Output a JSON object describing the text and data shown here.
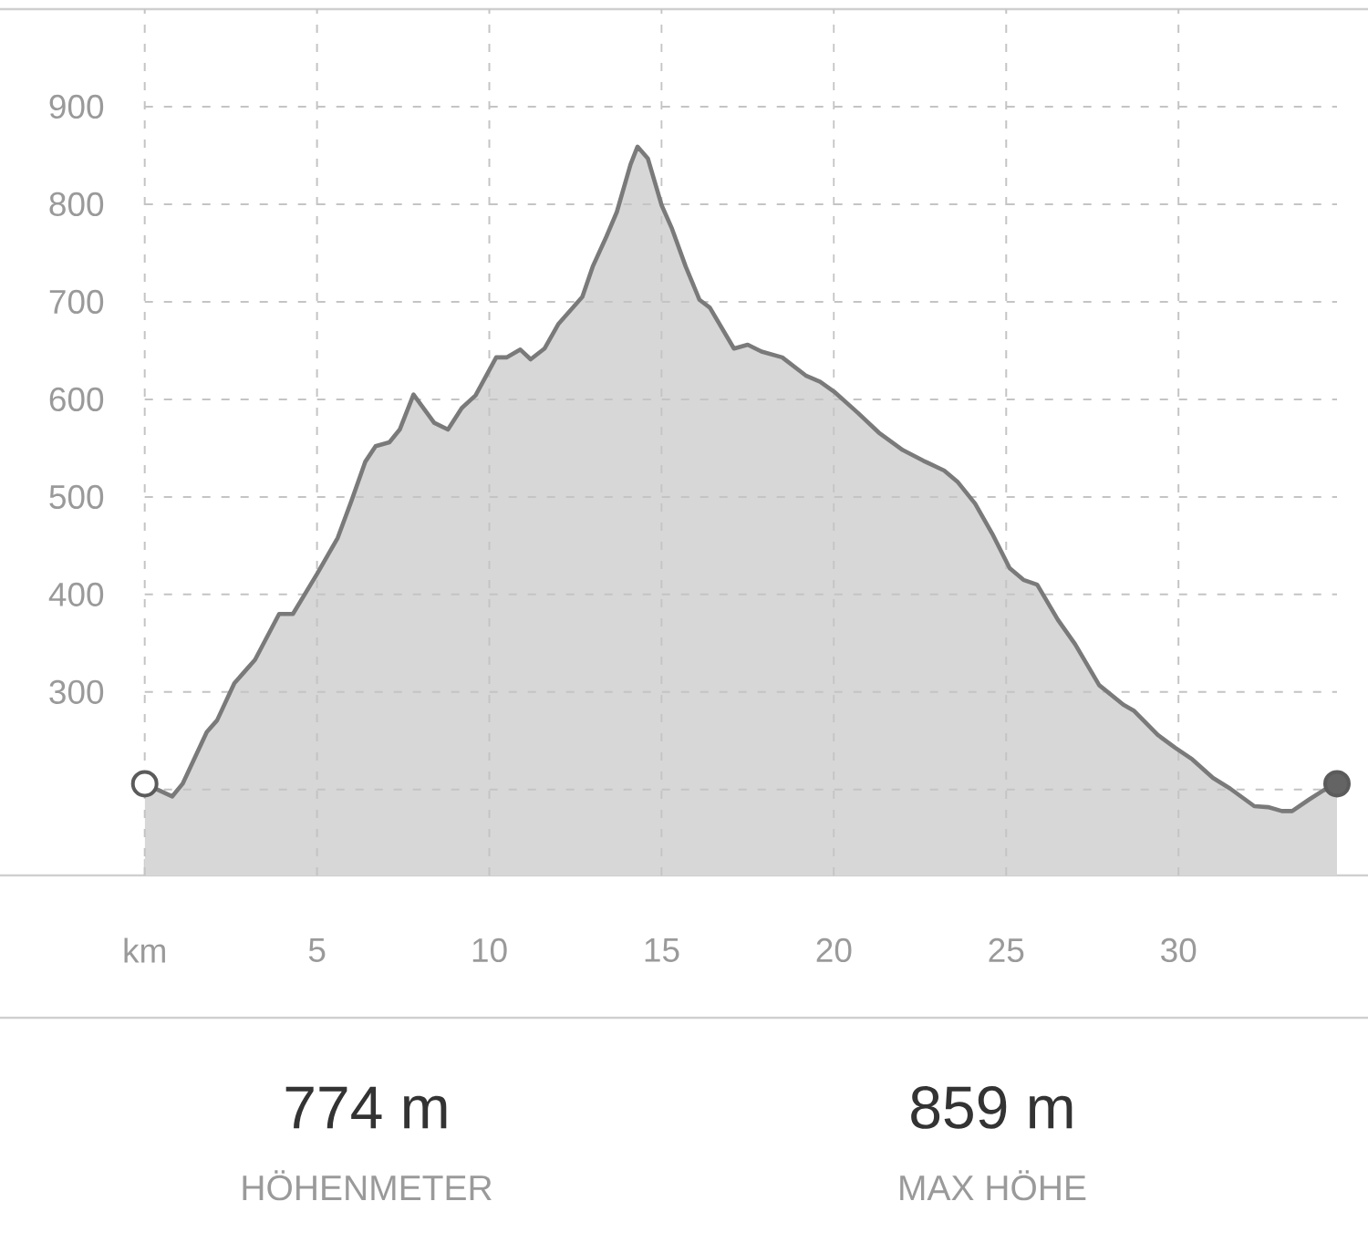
{
  "chart_data": {
    "type": "area",
    "xlim": [
      -4.2,
      35.5
    ],
    "ylim": [
      112,
      1000
    ],
    "xticks": [
      {
        "value": 0,
        "label": "km"
      },
      5,
      10,
      15,
      20,
      25,
      30
    ],
    "yticks": [
      {
        "value": 200,
        "label": null
      },
      300,
      400,
      500,
      600,
      700,
      800,
      900
    ],
    "grid": true,
    "series": [
      {
        "color": "#7a7a7a",
        "x": [
          0,
          0.8,
          1.1,
          1.8,
          2.1,
          2.6,
          2.9,
          3.2,
          3.9,
          4.3,
          5.0,
          5.6,
          6.0,
          6.4,
          6.7,
          7.1,
          7.4,
          7.8,
          8.4,
          8.8,
          9.2,
          9.6,
          10.2,
          10.5,
          10.9,
          11.2,
          11.6,
          12.0,
          12.7,
          13.0,
          13.4,
          13.7,
          14.1,
          14.3,
          14.6,
          15.0,
          15.3,
          15.7,
          16.1,
          16.4,
          17.1,
          17.5,
          17.9,
          18.5,
          19.2,
          19.6,
          20.0,
          20.7,
          21.3,
          22.0,
          22.6,
          23.2,
          23.6,
          24.1,
          24.6,
          25.1,
          25.5,
          25.9,
          26.5,
          27.0,
          27.7,
          28.4,
          28.7,
          29.4,
          29.9,
          30.4,
          31.0,
          31.5,
          32.2,
          32.6,
          33.0,
          33.3,
          33.8,
          34.2,
          34.6
        ],
        "values": [
          206,
          193,
          206,
          259,
          271,
          309,
          321,
          333,
          380,
          380,
          421,
          458,
          496,
          536,
          552,
          556,
          569,
          605,
          576,
          569,
          591,
          604,
          643,
          643,
          651,
          641,
          652,
          677,
          705,
          736,
          767,
          792,
          841,
          859,
          847,
          799,
          775,
          736,
          702,
          694,
          652,
          656,
          649,
          643,
          624,
          618,
          608,
          586,
          566,
          548,
          537,
          527,
          515,
          493,
          462,
          427,
          415,
          410,
          374,
          349,
          307,
          287,
          281,
          256,
          243,
          231,
          212,
          201,
          183,
          182,
          178,
          178,
          190,
          199,
          206
        ]
      },
      {
        "type": "scatter",
        "marker": "circle",
        "color": "#ffffff",
        "x": [
          0
        ],
        "values": [
          206
        ]
      },
      {
        "type": "scatter",
        "marker": "circle",
        "color": "#646464",
        "x": [
          34.6
        ],
        "values": [
          206
        ]
      }
    ],
    "annotations": [
      "774 m",
      "HÖHENMETER",
      "859 m",
      "MAX HÖHE"
    ]
  }
}
